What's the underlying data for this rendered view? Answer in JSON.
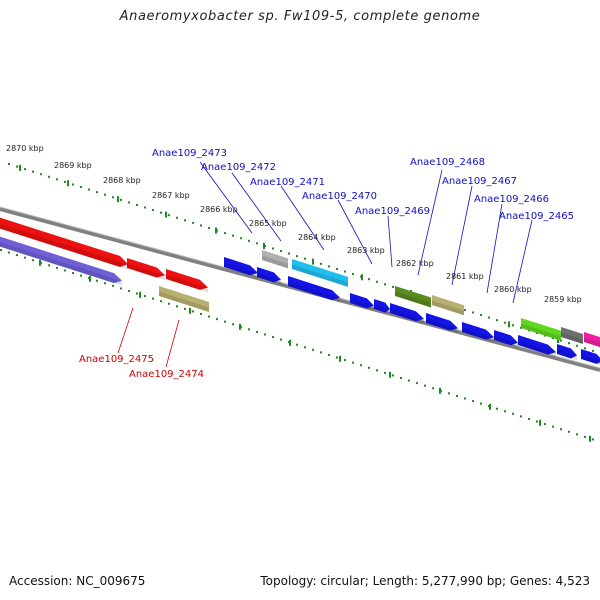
{
  "title": "Anaeromyxobacter sp. Fw109-5, complete genome",
  "footer": {
    "accession": "Accession: NC_009675",
    "topology": "Topology: circular; Length: 5,277,990 bp; Genes: 4,523"
  },
  "colors": {
    "kbp_dots": "#1e8a1e",
    "genome_line": "#808080",
    "forward_label": "#1010c0",
    "reverse_label": "#cc0000"
  },
  "scale_labels": [
    "2870 kbp",
    "2869 kbp",
    "2868 kbp",
    "2867 kbp",
    "2866 kbp",
    "2865 kbp",
    "2864 kbp",
    "2863 kbp",
    "2862 kbp",
    "2861 kbp",
    "2860 kbp",
    "2859 kbp"
  ],
  "forward_labels": [
    "Anae109_2473",
    "Anae109_2472",
    "Anae109_2471",
    "Anae109_2470",
    "Anae109_2469",
    "Anae109_2468",
    "Anae109_2467",
    "Anae109_2466",
    "Anae109_2465"
  ],
  "reverse_labels": [
    "Anae109_2475",
    "Anae109_2474"
  ],
  "gene_colors": {
    "red": "#ee1111",
    "purple": "#7060d8",
    "khaki": "#b8b070",
    "blue": "#1414e8",
    "gray": "#b0b0b0",
    "cyan": "#20c0ee",
    "olive": "#5a8a20",
    "lime": "#60d820",
    "darkgray": "#707070",
    "magenta": "#ee20a0"
  }
}
